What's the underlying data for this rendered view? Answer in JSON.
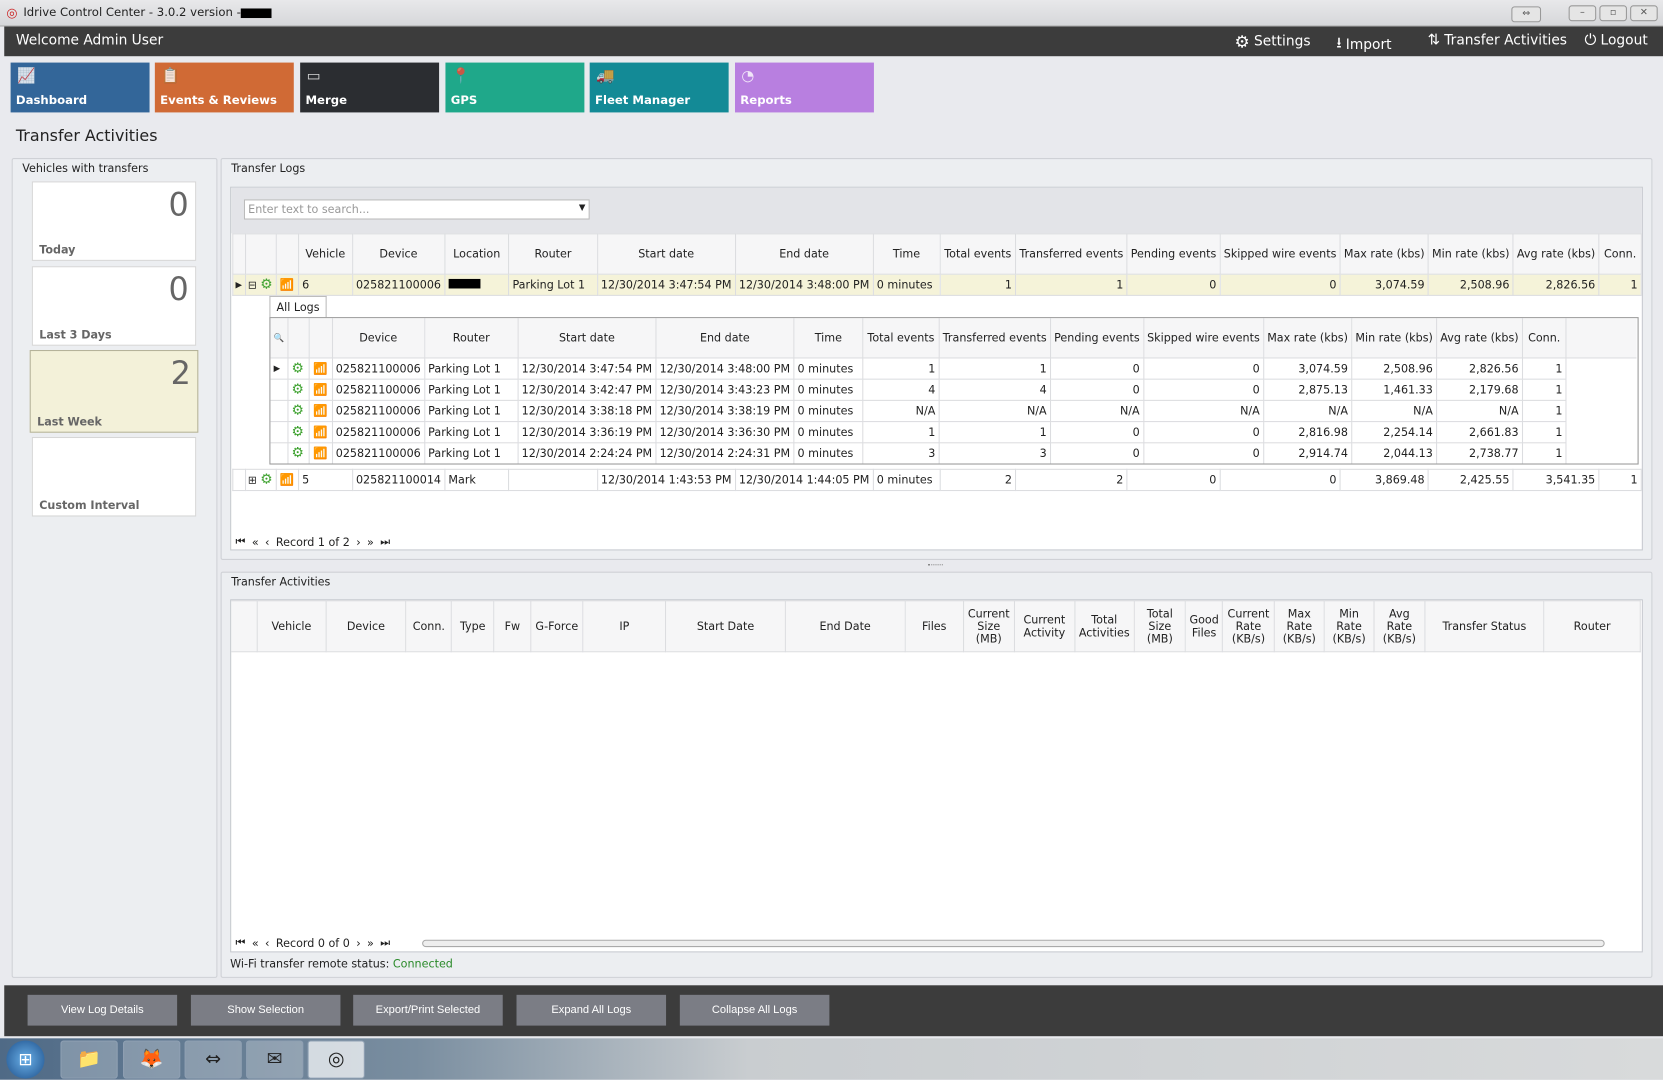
{
  "window": {
    "title": "Idrive Control Center - 3.0.2 version -",
    "buttons": [
      "⇔",
      "–",
      "▫",
      "✕"
    ]
  },
  "topbar": {
    "welcome": "Welcome Admin User",
    "links": [
      {
        "label": "Settings",
        "icon": "gear-icon"
      },
      {
        "label": "Import",
        "icon": "download-icon"
      },
      {
        "label": "Transfer Activities",
        "icon": "transfer-icon"
      },
      {
        "label": "Logout",
        "icon": "power-icon"
      }
    ]
  },
  "tiles": [
    {
      "label": "Dashboard",
      "color": "#336699",
      "icon": "chart-icon"
    },
    {
      "label": "Events & Reviews",
      "color": "#d06a35",
      "icon": "clipboard-icon"
    },
    {
      "label": "Merge",
      "color": "#2b2d31",
      "icon": "merge-icon"
    },
    {
      "label": "GPS",
      "color": "#1fa88a",
      "icon": "map-pin-icon"
    },
    {
      "label": "Fleet Manager",
      "color": "#138a96",
      "icon": "vehicles-icon"
    },
    {
      "label": "Reports",
      "color": "#b87fe0",
      "icon": "pie-icon"
    }
  ],
  "page_title": "Transfer Activities",
  "vehicles": {
    "title": "Vehicles with transfers",
    "cards": [
      {
        "count": "0",
        "label": "Today"
      },
      {
        "count": "0",
        "label": "Last 3 Days"
      },
      {
        "count": "2",
        "label": "Last Week",
        "selected": true
      },
      {
        "count": "",
        "label": "Custom Interval"
      }
    ]
  },
  "logs": {
    "title": "Transfer Logs",
    "search_placeholder": "Enter text to search...",
    "columns": [
      "Vehicle",
      "Device",
      "Location",
      "Router",
      "Start date",
      "End date",
      "Time",
      "Total events",
      "Transferred events",
      "Pending events",
      "Skipped wire events",
      "Max rate (kbs)",
      "Min rate (kbs)",
      "Avg rate (kbs)",
      "Conn."
    ],
    "rows": [
      {
        "vehicle": "6",
        "device": "025821100006",
        "location": "",
        "router": "Parking Lot 1",
        "start": "12/30/2014 3:47:54 PM",
        "end": "12/30/2014 3:48:00 PM",
        "time": "0 minutes",
        "total": "1",
        "transferred": "1",
        "pending": "0",
        "skipped": "0",
        "max": "3,074.59",
        "min": "2,508.96",
        "avg": "2,826.56",
        "conn": "1",
        "expanded": true
      },
      {
        "vehicle": "5",
        "device": "025821100014",
        "location": "Mark",
        "router": "",
        "start": "12/30/2014 1:43:53 PM",
        "end": "12/30/2014 1:44:05 PM",
        "time": "0 minutes",
        "total": "2",
        "transferred": "2",
        "pending": "0",
        "skipped": "0",
        "max": "3,869.48",
        "min": "2,425.55",
        "avg": "3,541.35",
        "conn": "1"
      }
    ],
    "detail": {
      "tab": "All Logs",
      "columns": [
        "Device",
        "Router",
        "Start date",
        "End date",
        "Time",
        "Total events",
        "Transferred events",
        "Pending events",
        "Skipped wire events",
        "Max rate (kbs)",
        "Min rate (kbs)",
        "Avg rate (kbs)",
        "Conn."
      ],
      "rows": [
        [
          "025821100006",
          "Parking Lot 1",
          "12/30/2014 3:47:54 PM",
          "12/30/2014 3:48:00 PM",
          "0 minutes",
          "1",
          "1",
          "0",
          "0",
          "3,074.59",
          "2,508.96",
          "2,826.56",
          "1"
        ],
        [
          "025821100006",
          "Parking Lot 1",
          "12/30/2014 3:42:47 PM",
          "12/30/2014 3:43:23 PM",
          "0 minutes",
          "4",
          "4",
          "0",
          "0",
          "2,875.13",
          "1,461.33",
          "2,179.68",
          "1"
        ],
        [
          "025821100006",
          "Parking Lot 1",
          "12/30/2014 3:38:18 PM",
          "12/30/2014 3:38:19 PM",
          "0 minutes",
          "N/A",
          "N/A",
          "N/A",
          "N/A",
          "N/A",
          "N/A",
          "N/A",
          "1"
        ],
        [
          "025821100006",
          "Parking Lot 1",
          "12/30/2014 3:36:19 PM",
          "12/30/2014 3:36:30 PM",
          "0 minutes",
          "1",
          "1",
          "0",
          "0",
          "2,816.98",
          "2,254.14",
          "2,661.83",
          "1"
        ],
        [
          "025821100006",
          "Parking Lot 1",
          "12/30/2014 2:24:24 PM",
          "12/30/2014 2:24:31 PM",
          "0 minutes",
          "3",
          "3",
          "0",
          "0",
          "2,914.74",
          "2,044.13",
          "2,738.77",
          "1"
        ]
      ]
    },
    "record": "Record 1 of 2"
  },
  "activities": {
    "title": "Transfer Activities",
    "columns": [
      "Vehicle",
      "Device",
      "Conn.",
      "Type",
      "Fw",
      "G-Force",
      "IP",
      "Start Date",
      "End Date",
      "Files",
      "Current Size (MB)",
      "Current Activity",
      "Total Activities",
      "Total Size (MB)",
      "Good Files",
      "Current Rate (KB/s)",
      "Max Rate (KB/s)",
      "Min Rate (KB/s)",
      "Avg Rate (KB/s)",
      "Transfer Status",
      "Router"
    ],
    "record": "Record 0 of 0"
  },
  "status": {
    "label": "Wi-Fi transfer remote status:",
    "value": "Connected",
    "color": "#2a8a2a"
  },
  "buttons": [
    "View Log Details",
    "Show Selection",
    "Export/Print Selected",
    "Expand All Logs",
    "Collapse All Logs"
  ]
}
